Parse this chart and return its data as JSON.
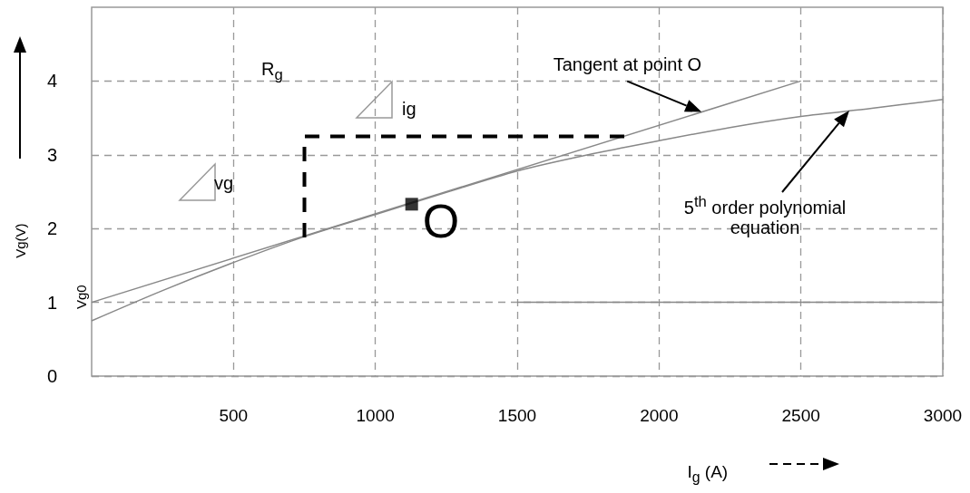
{
  "chart_data": {
    "type": "line",
    "xlabel": "I$_{g}$ (A)",
    "ylabel": "Vg(V)",
    "xlim": [
      0,
      3000
    ],
    "xticks": [
      500,
      1000,
      1500,
      2000,
      2500,
      3000
    ],
    "ylim": [
      0,
      5
    ],
    "yticks": [
      0,
      1,
      2,
      3,
      4
    ],
    "grid": true,
    "marker": "none",
    "line_style": "solid",
    "series": [
      {
        "color": "#888888",
        "x": [
          0,
          2500
        ],
        "values": [
          1.0,
          4.0
        ]
      },
      {
        "color": "#888888",
        "x": [
          0,
          250,
          500,
          750,
          1000,
          1250,
          1500,
          1750,
          2000,
          2250,
          2500,
          2750,
          3000
        ],
        "values": [
          0.75,
          1.16,
          1.54,
          1.89,
          2.19,
          2.49,
          2.78,
          3.0,
          3.19,
          3.37,
          3.52,
          3.63,
          3.75
        ]
      },
      {
        "color": "#888888",
        "x": [
          1500,
          3000
        ],
        "values": [
          1,
          1
        ]
      },
      {
        "color": "#000000",
        "line_style": "dashed",
        "x": [
          750,
          750,
          1890
        ],
        "values": [
          1.88,
          3.25,
          3.25
        ]
      },
      {
        "type": "scatter",
        "marker": "square",
        "color": "#000000",
        "x": [
          1128
        ],
        "values": [
          2.33
        ]
      }
    ],
    "annotations": [
      "R$_{g}$",
      "vg",
      "ig",
      {
        "text": "Vg0",
        "x": 0,
        "y": 1
      },
      {
        "text": "O",
        "x": 1128,
        "y": 2.33
      },
      {
        "text": "Tangent at point O",
        "x": 2150,
        "y": 3.58
      },
      "5$^{th}$ order polynomial equation"
    ]
  }
}
